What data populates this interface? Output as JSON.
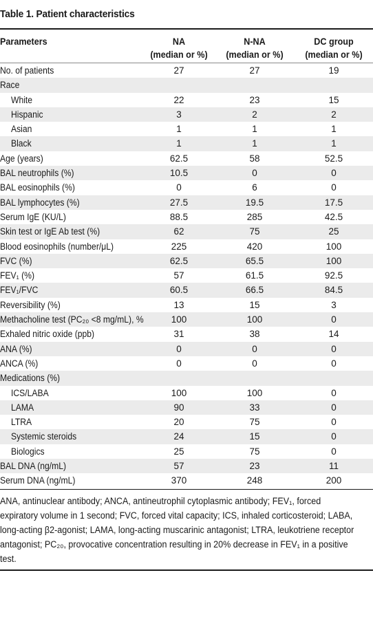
{
  "title": "Table 1. Patient characteristics",
  "columns": {
    "param": "Parameters",
    "na_line1": "NA",
    "na_line2": "(median or %)",
    "nna_line1": "N-NA",
    "nna_line2": "(median or %)",
    "dc_line1": "DC group",
    "dc_line2": "(median or %)"
  },
  "rows": [
    {
      "label": "No. of patients",
      "indent": false,
      "na": "27",
      "nna": "27",
      "dc": "19"
    },
    {
      "label": "Race",
      "indent": false,
      "na": "",
      "nna": "",
      "dc": ""
    },
    {
      "label": "White",
      "indent": true,
      "na": "22",
      "nna": "23",
      "dc": "15"
    },
    {
      "label": "Hispanic",
      "indent": true,
      "na": "3",
      "nna": "2",
      "dc": "2"
    },
    {
      "label": "Asian",
      "indent": true,
      "na": "1",
      "nna": "1",
      "dc": "1"
    },
    {
      "label": "Black",
      "indent": true,
      "na": "1",
      "nna": "1",
      "dc": "1"
    },
    {
      "label": "Age (years)",
      "indent": false,
      "na": "62.5",
      "nna": "58",
      "dc": "52.5"
    },
    {
      "label": "BAL neutrophils (%)",
      "indent": false,
      "na": "10.5",
      "nna": "0",
      "dc": "0"
    },
    {
      "label": "BAL eosinophils (%)",
      "indent": false,
      "na": "0",
      "nna": "6",
      "dc": "0"
    },
    {
      "label": "BAL lymphocytes (%)",
      "indent": false,
      "na": "27.5",
      "nna": "19.5",
      "dc": "17.5"
    },
    {
      "label": "Serum IgE (KU/L)",
      "indent": false,
      "na": "88.5",
      "nna": "285",
      "dc": "42.5"
    },
    {
      "label": "Skin test or IgE Ab test (%)",
      "indent": false,
      "na": "62",
      "nna": "75",
      "dc": "25"
    },
    {
      "label": "Blood eosinophils (number/μL)",
      "indent": false,
      "na": "225",
      "nna": "420",
      "dc": "100"
    },
    {
      "label": "FVC (%)",
      "indent": false,
      "na": "62.5",
      "nna": "65.5",
      "dc": "100"
    },
    {
      "label": "FEV₁ (%)",
      "indent": false,
      "na": "57",
      "nna": "61.5",
      "dc": "92.5"
    },
    {
      "label": "FEV₁/FVC",
      "indent": false,
      "na": "60.5",
      "nna": "66.5",
      "dc": "84.5"
    },
    {
      "label": "Reversibility (%)",
      "indent": false,
      "na": "13",
      "nna": "15",
      "dc": "3"
    },
    {
      "label": "Methacholine test (PC₂₀ <8 mg/mL), %",
      "indent": false,
      "na": "100",
      "nna": "100",
      "dc": "0"
    },
    {
      "label": "Exhaled nitric oxide (ppb)",
      "indent": false,
      "na": "31",
      "nna": "38",
      "dc": "14"
    },
    {
      "label": "ANA (%)",
      "indent": false,
      "na": "0",
      "nna": "0",
      "dc": "0"
    },
    {
      "label": "ANCA (%)",
      "indent": false,
      "na": "0",
      "nna": "0",
      "dc": "0"
    },
    {
      "label": "Medications (%)",
      "indent": false,
      "na": "",
      "nna": "",
      "dc": ""
    },
    {
      "label": "ICS/LABA",
      "indent": true,
      "na": "100",
      "nna": "100",
      "dc": "0"
    },
    {
      "label": "LAMA",
      "indent": true,
      "na": "90",
      "nna": "33",
      "dc": "0"
    },
    {
      "label": "LTRA",
      "indent": true,
      "na": "20",
      "nna": "75",
      "dc": "0"
    },
    {
      "label": "Systemic steroids",
      "indent": true,
      "na": "24",
      "nna": "15",
      "dc": "0"
    },
    {
      "label": "Biologics",
      "indent": true,
      "na": "25",
      "nna": "75",
      "dc": "0"
    },
    {
      "label": "BAL DNA (ng/mL)",
      "indent": false,
      "na": "57",
      "nna": "23",
      "dc": "11"
    },
    {
      "label": "Serum DNA (ng/mL)",
      "indent": false,
      "na": "370",
      "nna": "248",
      "dc": "200"
    }
  ],
  "footnote": "ANA, antinuclear antibody; ANCA, antineutrophil cytoplasmic antibody; FEV₁, forced expiratory volume in 1 second; FVC, forced vital capacity; ICS, inhaled corticosteroid; LABA, long-acting β2-agonist; LAMA, long-acting muscarinic antagonist; LTRA, leukotriene receptor antagonist; PC₂₀, provocative concentration resulting in 20% decrease in FEV₁ in a positive test.",
  "colors": {
    "shade": "#ebebeb",
    "rule": "#1a1a1a"
  }
}
